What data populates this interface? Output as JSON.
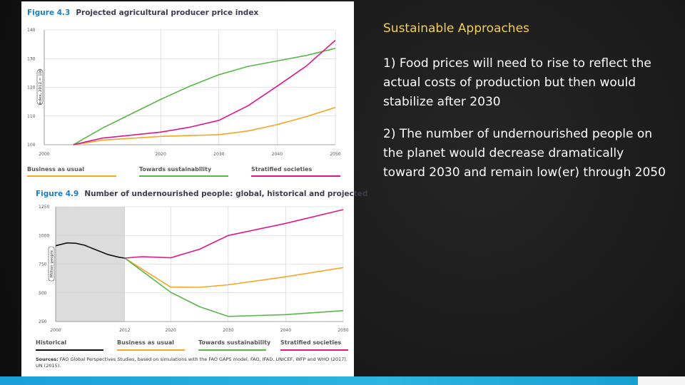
{
  "slide": {
    "heading": "Sustainable Approaches",
    "points": [
      "1) Food prices will need to rise to reflect the actual costs of production but then would stabilize after 2030",
      "2) The number of undernourished people on the planet would decrease dramatically toward 2030 and remain low(er) through 2050"
    ]
  },
  "figure_sources": {
    "label": "Sources:",
    "text": "FAO Global Perspectives Studies, based on simulations with the FAO GAPS model, FAO, IFAD, UNICEF, WFP and WHO (2017). UN (2015)."
  },
  "colors": {
    "business_as_usual": "#f5a623",
    "towards_sustainability": "#5ab64b",
    "stratified_societies": "#e0158c",
    "historical": "#111111",
    "historical_shading": "#dcdcdc"
  },
  "chart_data": [
    {
      "type": "line",
      "figure_number": "Figure 4.3",
      "title": "Projected agricultural producer price index",
      "ylabel": "Index, 2012 = 100",
      "xlim": [
        2000,
        2050
      ],
      "ylim": [
        100,
        140
      ],
      "x_ticks": [
        "2000",
        "2020",
        "2030",
        "2040",
        "2050"
      ],
      "y_ticks": [
        "100",
        "110",
        "120",
        "130",
        "140"
      ],
      "grid": true,
      "legend_position": "bottom",
      "series": [
        {
          "name": "Business as usual",
          "color_key": "business_as_usual",
          "x": [
            2005,
            2010,
            2020,
            2030,
            2035,
            2040,
            2045,
            2050
          ],
          "y": [
            100,
            101.6,
            102.9,
            103.5,
            104.8,
            107.0,
            109.8,
            113.0
          ]
        },
        {
          "name": "Towards sustainability",
          "color_key": "towards_sustainability",
          "x": [
            2005,
            2010,
            2015,
            2020,
            2025,
            2030,
            2035,
            2040,
            2045,
            2050
          ],
          "y": [
            100,
            105.8,
            110.8,
            115.8,
            120.4,
            124.4,
            127.3,
            129.2,
            131.1,
            133.6
          ]
        },
        {
          "name": "Stratified societies",
          "color_key": "stratified_societies",
          "x": [
            2005,
            2010,
            2020,
            2025,
            2030,
            2035,
            2040,
            2045,
            2050
          ],
          "y": [
            100,
            102.3,
            104.4,
            106.1,
            108.5,
            113.6,
            120.4,
            127.4,
            136.4
          ]
        }
      ]
    },
    {
      "type": "line",
      "figure_number": "Figure 4.9",
      "title": "Number of undernourished people: global, historical and projected",
      "ylabel": "Million people",
      "xlim": [
        2000,
        2050
      ],
      "ylim": [
        250,
        1250
      ],
      "x_ticks": [
        "2000",
        "2012",
        "2020",
        "2030",
        "2040",
        "2050"
      ],
      "y_ticks": [
        "250",
        "500",
        "750",
        "1000",
        "1250"
      ],
      "shaded_region": [
        2000,
        2012
      ],
      "grid": true,
      "legend_position": "bottom",
      "series": [
        {
          "name": "Historical",
          "color_key": "historical",
          "x": [
            2000,
            2002,
            2003.5,
            2005,
            2007,
            2009,
            2011,
            2012
          ],
          "y": [
            910,
            935,
            932,
            915,
            875,
            835,
            810,
            803
          ]
        },
        {
          "name": "Business as usual",
          "color_key": "business_as_usual",
          "x": [
            2012,
            2020,
            2025,
            2030,
            2040,
            2050
          ],
          "y": [
            803,
            550,
            548,
            570,
            640,
            720
          ]
        },
        {
          "name": "Towards sustainability",
          "color_key": "towards_sustainability",
          "x": [
            2012,
            2020,
            2025,
            2030,
            2040,
            2050
          ],
          "y": [
            803,
            505,
            380,
            295,
            310,
            345
          ]
        },
        {
          "name": "Stratified societies",
          "color_key": "stratified_societies",
          "x": [
            2012,
            2015,
            2020,
            2025,
            2030,
            2040,
            2050
          ],
          "y": [
            803,
            815,
            805,
            880,
            1000,
            1105,
            1225
          ]
        }
      ]
    }
  ]
}
